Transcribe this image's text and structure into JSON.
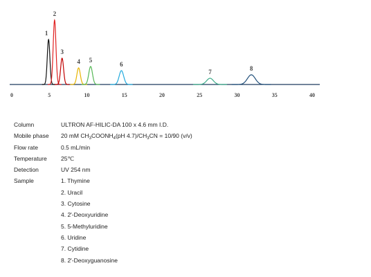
{
  "chart_data": {
    "type": "line",
    "xlim": [
      0,
      40
    ],
    "x_ticks": [
      "0",
      "5",
      "10",
      "15",
      "20",
      "25",
      "30",
      "35",
      "40"
    ],
    "baseline_color": "#1f3b5e",
    "grid": false,
    "legend": "none",
    "series": [
      {
        "label": "1",
        "x": 4.9,
        "height": 0.65,
        "color": "#111111"
      },
      {
        "label": "2",
        "x": 5.7,
        "height": 0.93,
        "color": "#e02020"
      },
      {
        "label": "3",
        "x": 6.7,
        "height": 0.38,
        "color": "#c00000"
      },
      {
        "label": "4",
        "x": 8.9,
        "height": 0.24,
        "color": "#e8b400"
      },
      {
        "label": "5",
        "x": 10.5,
        "height": 0.26,
        "color": "#55b855"
      },
      {
        "label": "6",
        "x": 14.6,
        "height": 0.2,
        "color": "#22aadd"
      },
      {
        "label": "7",
        "x": 26.4,
        "height": 0.09,
        "color": "#3aaa88"
      },
      {
        "label": "8",
        "x": 31.9,
        "height": 0.14,
        "color": "#1f4e79"
      }
    ]
  },
  "conditions": {
    "column_label": "Column",
    "column_value": "ULTRON AF-HILIC-DA 100 x 4.6 mm I.D.",
    "mobile_label": "Mobile phase",
    "mobile_part1": "20 mM CH",
    "mobile_sub1": "3",
    "mobile_part2": "COONH",
    "mobile_sub2": "4",
    "mobile_part3": "(pH 4.7)/CH",
    "mobile_sub3": "3",
    "mobile_part4": "CN = 10/90 (v/v)",
    "flow_label": "Flow rate",
    "flow_value": "0.5 mL/min",
    "temp_label": "Temperature",
    "temp_value": "25℃",
    "detect_label": "Detection",
    "detect_value": "UV 254 nm",
    "sample_label": "Sample",
    "samples": [
      "1. Thymine",
      "2. Uracil",
      "3. Cytosine",
      "4. 2'-Deoxyuridine",
      "5. 5-Methyluridine",
      "6. Uridine",
      "7. Cytidine",
      "8. 2'-Deoxyguanosine"
    ]
  }
}
